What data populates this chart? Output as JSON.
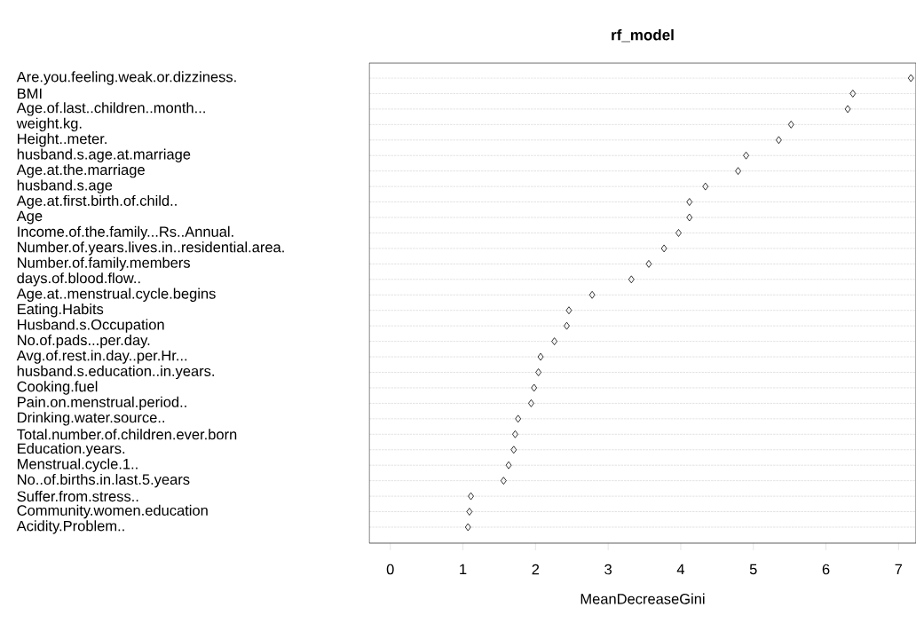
{
  "chart_data": {
    "type": "scatter",
    "title": "rf_model",
    "xlabel": "MeanDecreaseGini",
    "orientation": "horizontal",
    "marker": "diamond",
    "color": "#000000",
    "grid": "y",
    "categories": [
      "Are.you.feeling.weak.or.dizziness.",
      "BMI",
      "Age.of.last..children..month...",
      "weight.kg.",
      "Height..meter.",
      "husband.s.age.at.marriage",
      "Age.at.the.marriage",
      "husband.s.age",
      "Age.at.first.birth.of.child..",
      "Age",
      "Income.of.the.family...Rs..Annual.",
      "Number.of.years.lives.in..residential.area.",
      "Number.of.family.members",
      "days.of.blood.flow..",
      "Age.at..menstrual.cycle.begins",
      "Eating.Habits",
      "Husband.s.Occupation",
      "No.of.pads...per.day.",
      "Avg.of.rest.in.day..per.Hr...",
      "husband.s.education..in.years.",
      "Cooking.fuel",
      "Pain.on.menstrual.period..",
      "Drinking.water.source..",
      "Total.number.of.children.ever.born",
      "Education.years.",
      "Menstrual.cycle.1..",
      "No..of.births.in.last.5.years",
      "Suffer.from.stress..",
      "Community.women.education",
      "Acidity.Problem.."
    ],
    "values": [
      7.17,
      6.37,
      6.3,
      5.52,
      5.35,
      4.9,
      4.79,
      4.34,
      4.12,
      4.12,
      3.97,
      3.77,
      3.56,
      3.32,
      2.78,
      2.46,
      2.43,
      2.26,
      2.07,
      2.04,
      1.98,
      1.94,
      1.76,
      1.72,
      1.7,
      1.63,
      1.56,
      1.11,
      1.09,
      1.07
    ],
    "xlim": [
      -0.29,
      7.24
    ],
    "xticks": [
      0,
      1,
      2,
      3,
      4,
      5,
      6,
      7
    ]
  }
}
